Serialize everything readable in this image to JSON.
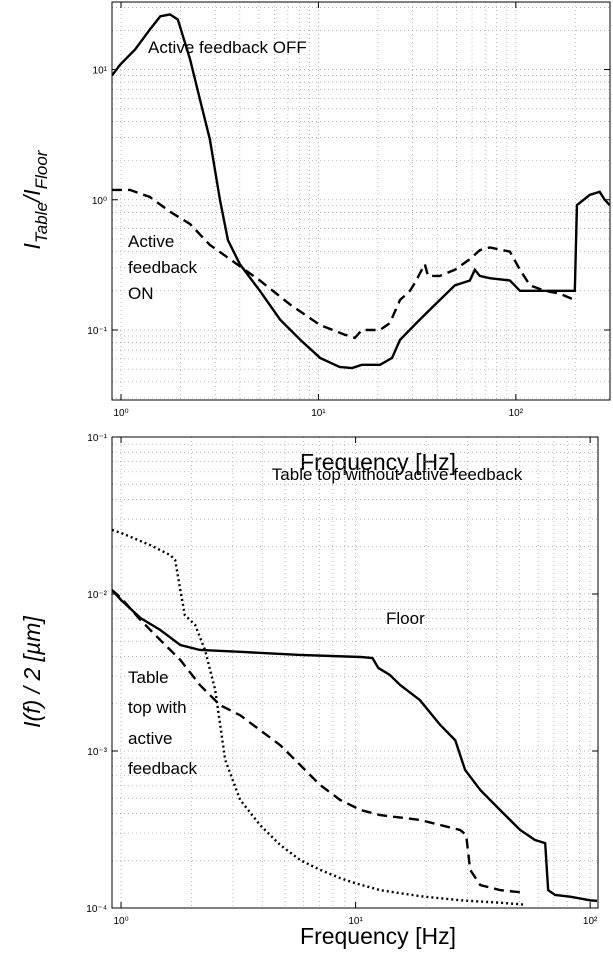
{
  "chart_data": [
    {
      "type": "line",
      "log_x": true,
      "log_y": true,
      "grid": true,
      "minor_grid": true,
      "xlabel": "Frequency [Hz]",
      "ylabel": [
        "I",
        "Table",
        "/I",
        "Floor"
      ],
      "xlim": [
        0.9,
        300
      ],
      "ylim": [
        0.029,
        33
      ],
      "xticks": [
        {
          "value": 1,
          "label": "10⁰"
        },
        {
          "value": 10,
          "label": "10¹"
        },
        {
          "value": 100,
          "label": "10²"
        }
      ],
      "yticks": [
        {
          "value": 0.1,
          "label": "10⁻¹"
        },
        {
          "value": 1,
          "label": "10⁰"
        },
        {
          "value": 10,
          "label": "10¹"
        }
      ],
      "annotations": [
        "Active feedback OFF",
        "Active",
        "feedback",
        "ON"
      ],
      "series": [
        {
          "color": "#000000",
          "line_style": "solid",
          "x": [
            0.9,
            0.99,
            1.18,
            1.4,
            1.58,
            1.77,
            1.94,
            2.24,
            2.51,
            2.82,
            3.17,
            3.48,
            4.0,
            5.05,
            6.4,
            8.1,
            10.2,
            12.8,
            14.8,
            16.6,
            20.5,
            23.6,
            25.9,
            32.6,
            41.2,
            49.1,
            58.5,
            62,
            65.7,
            73.8,
            93.3,
            105,
            132,
            167,
            199,
            204,
            237,
            266,
            282,
            299
          ],
          "values": [
            9.0,
            10.9,
            14.3,
            20.3,
            25.6,
            26.5,
            24.2,
            11.9,
            5.9,
            2.9,
            1.0,
            0.49,
            0.32,
            0.2,
            0.12,
            0.084,
            0.061,
            0.052,
            0.051,
            0.054,
            0.054,
            0.061,
            0.084,
            0.12,
            0.17,
            0.22,
            0.24,
            0.29,
            0.26,
            0.25,
            0.24,
            0.2,
            0.2,
            0.2,
            0.2,
            0.91,
            1.09,
            1.15,
            1.0,
            0.91
          ]
        },
        {
          "color": "#000000",
          "line_style": "dashed",
          "x": [
            0.9,
            1.11,
            1.4,
            1.77,
            2.24,
            2.82,
            3.56,
            5.05,
            7.18,
            10.2,
            13.6,
            15.3,
            16.6,
            20.5,
            23.0,
            25.9,
            29.1,
            30.8,
            34.6,
            35.9,
            41.2,
            49.1,
            58.5,
            65.7,
            73.8,
            93.3,
            105,
            118,
            140,
            167,
            199
          ],
          "values": [
            1.19,
            1.19,
            1.05,
            0.81,
            0.65,
            0.45,
            0.35,
            0.24,
            0.157,
            0.109,
            0.092,
            0.087,
            0.1,
            0.1,
            0.113,
            0.17,
            0.2,
            0.23,
            0.32,
            0.26,
            0.26,
            0.29,
            0.35,
            0.41,
            0.43,
            0.4,
            0.29,
            0.22,
            0.2,
            0.19,
            0.17
          ]
        }
      ]
    },
    {
      "type": "line",
      "log_x": true,
      "log_y": true,
      "grid": true,
      "minor_grid": true,
      "xlabel": "Frequency [Hz]",
      "ylabel": "I(f) / 2  [µm]",
      "xlim": [
        0.915,
        108
      ],
      "ylim": [
        0.0001,
        0.1
      ],
      "xticks": [
        {
          "value": 1,
          "label": "10⁰"
        },
        {
          "value": 10,
          "label": "10¹"
        },
        {
          "value": 100,
          "label": "10²"
        }
      ],
      "yticks": [
        {
          "value": 0.0001,
          "label": "10⁻⁴"
        },
        {
          "value": 0.001,
          "label": "10⁻³"
        },
        {
          "value": 0.01,
          "label": "10⁻²"
        },
        {
          "value": 0.1,
          "label": "10⁻¹"
        }
      ],
      "annotations": [
        "Table top without active feedback",
        "Floor",
        "Table",
        "top with",
        "active",
        "feedback"
      ],
      "series": [
        {
          "color": "#000000",
          "line_style": "dotted",
          "x": [
            0.915,
            1,
            1.33,
            1.62,
            1.7,
            1.79,
            1.87,
            2.07,
            2.28,
            2.52,
            2.78,
            3.22,
            3.91,
            4.77,
            5.8,
            7.06,
            8.59,
            9.95,
            12.7,
            18.8,
            27.9,
            41.3,
            52.8
          ],
          "values": [
            0.0256,
            0.0245,
            0.0205,
            0.0177,
            0.0165,
            0.0106,
            0.00735,
            0.00635,
            0.0044,
            0.00245,
            0.000877,
            0.000488,
            0.000338,
            0.000252,
            0.000202,
            0.000175,
            0.000155,
            0.000144,
            0.00013,
            0.000119,
            0.000112,
            0.000108,
            0.000105
          ]
        },
        {
          "color": "#000000",
          "line_style": "solid",
          "x": [
            0.915,
            1,
            1.21,
            1.47,
            1.79,
            2.17,
            3.22,
            5.8,
            10.5,
            11.8,
            12.5,
            14.0,
            15.5,
            18.8,
            22.9,
            26.6,
            29.3,
            34.0,
            41.3,
            50.3,
            58.2,
            64.3,
            66.2,
            70.9,
            82.2,
            100,
            107
          ],
          "values": [
            0.0106,
            0.00916,
            0.00703,
            0.0059,
            0.00473,
            0.0044,
            0.00428,
            0.00409,
            0.00397,
            0.00391,
            0.00338,
            0.00305,
            0.00263,
            0.00211,
            0.00147,
            0.00117,
            0.000757,
            0.000565,
            0.000421,
            0.000314,
            0.000271,
            0.000259,
            0.00013,
            0.000121,
            0.000118,
            0.000112,
            0.000111
          ]
        },
        {
          "color": "#000000",
          "line_style": "dashed",
          "x": [
            0.915,
            1,
            1.21,
            1.47,
            1.79,
            2.17,
            2.64,
            3.22,
            3.91,
            4.77,
            5.8,
            7.06,
            8.59,
            10.5,
            12.7,
            18.8,
            27.9,
            29.6,
            30.8,
            34.0,
            41.3,
            52.8
          ],
          "values": [
            0.0106,
            0.00944,
            0.00683,
            0.00509,
            0.0038,
            0.00263,
            0.00196,
            0.00169,
            0.00136,
            0.00109,
            0.000815,
            0.000607,
            0.000488,
            0.000421,
            0.000391,
            0.000364,
            0.000314,
            0.000292,
            0.000175,
            0.00014,
            0.00013,
            0.000125
          ]
        }
      ]
    }
  ]
}
